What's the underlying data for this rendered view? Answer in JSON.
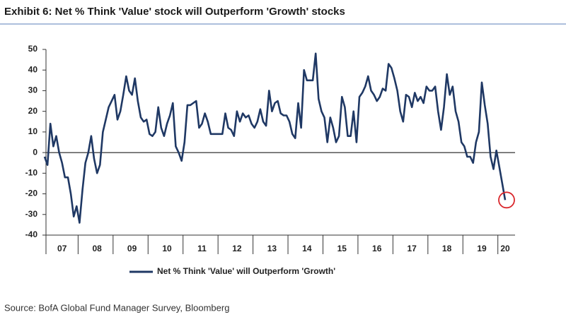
{
  "chart_data": {
    "type": "line",
    "title": "Exhibit 6: Net % Think 'Value' stock will Outperform 'Growth' stocks",
    "source": "Source: BofA Global Fund Manager Survey, Bloomberg",
    "categories": [
      null,
      null,
      null,
      null,
      null,
      null,
      "07",
      null,
      null,
      null,
      null,
      null,
      null,
      null,
      null,
      null,
      null,
      null,
      "08",
      null,
      null,
      null,
      null,
      null,
      null,
      null,
      null,
      null,
      null,
      null,
      "09",
      null,
      null,
      null,
      null,
      null,
      null,
      null,
      null,
      null,
      null,
      null,
      "10",
      null,
      null,
      null,
      null,
      null,
      null,
      null,
      null,
      null,
      null,
      null,
      "11",
      null,
      null,
      null,
      null,
      null,
      null,
      null,
      null,
      null,
      null,
      null,
      "12",
      null,
      null,
      null,
      null,
      null,
      null,
      null,
      null,
      null,
      null,
      null,
      "13",
      null,
      null,
      null,
      null,
      null,
      null,
      null,
      null,
      null,
      null,
      null,
      "14",
      null,
      null,
      null,
      null,
      null,
      null,
      null,
      null,
      null,
      null,
      null,
      "15",
      null,
      null,
      null,
      null,
      null,
      null,
      null,
      null,
      null,
      null,
      null,
      "16",
      null,
      null,
      null,
      null,
      null,
      null,
      null,
      null,
      null,
      null,
      null,
      "17",
      null,
      null,
      null,
      null,
      null,
      null,
      null,
      null,
      null,
      null,
      null,
      "18",
      null,
      null,
      null,
      null,
      null,
      null,
      null,
      null,
      null,
      null,
      null,
      "19",
      null,
      null,
      null,
      null,
      null,
      null,
      null,
      "20"
    ],
    "series": [
      {
        "name": "Net % Think 'Value' will Outperform 'Growth'",
        "color": "#1f3864",
        "values": [
          -2,
          -6,
          14,
          3,
          8,
          0,
          -5,
          -12,
          -12,
          -20,
          -31,
          -26,
          -34,
          -18,
          -5,
          0,
          8,
          -3,
          -10,
          -6,
          10,
          16,
          22,
          25,
          28,
          16,
          20,
          28,
          37,
          30,
          28,
          36,
          25,
          17,
          15,
          16,
          9,
          8,
          10,
          22,
          12,
          8,
          14,
          18,
          24,
          3,
          0,
          -4,
          5,
          23,
          23,
          24,
          25,
          12,
          14,
          19,
          15,
          9,
          9,
          9,
          9,
          9,
          19,
          12,
          11,
          8,
          20,
          15,
          19,
          17,
          18,
          14,
          12,
          15,
          21,
          15,
          13,
          30,
          20,
          24,
          25,
          19,
          18,
          18,
          15,
          9,
          7,
          24,
          12,
          40,
          35,
          35,
          35,
          48,
          26,
          20,
          17,
          5,
          17,
          12,
          5,
          8,
          27,
          22,
          8,
          8,
          20,
          5,
          27,
          29,
          32,
          37,
          30,
          28,
          25,
          27,
          31,
          30,
          43,
          41,
          36,
          30,
          20,
          15,
          28,
          27,
          22,
          29,
          25,
          27,
          24,
          32,
          30,
          30,
          32,
          20,
          11,
          22,
          38,
          28,
          32,
          20,
          15,
          5,
          3,
          -2,
          -2,
          -5,
          5,
          10,
          34,
          23,
          14,
          -2,
          -8,
          1,
          -7,
          -15,
          -23
        ]
      }
    ],
    "ylim": [
      -40,
      50
    ],
    "yticks": [
      -40,
      -30,
      -20,
      -10,
      0,
      10,
      20,
      30,
      40,
      50
    ],
    "legend": "bottom"
  }
}
